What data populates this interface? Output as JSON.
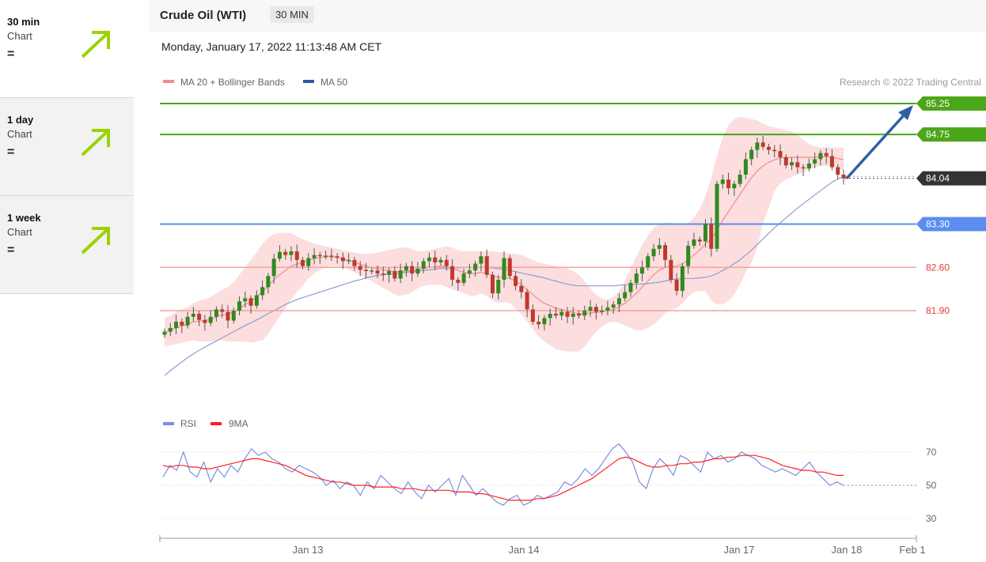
{
  "sidebar": {
    "items": [
      {
        "period": "30 min",
        "sub": "Chart",
        "signal": "=",
        "trend": "up"
      },
      {
        "period": "1 day",
        "sub": "Chart",
        "signal": "=",
        "trend": "up"
      },
      {
        "period": "1 week",
        "sub": "Chart",
        "signal": "=",
        "trend": "up"
      }
    ],
    "arrow_color": "#9ad400"
  },
  "header": {
    "title": "Crude Oil (WTI)",
    "interval": "30 MIN",
    "datetime": "Monday, January 17, 2022 11:13:48 AM CET"
  },
  "chart_data": {
    "type": "candlestick",
    "legend": [
      {
        "name": "MA 20 + Bollinger Bands",
        "color": "#f28b8b"
      },
      {
        "name": "MA 50",
        "color": "#2f5aa0"
      }
    ],
    "credit": "Research © 2022 Trading Central",
    "price_levels": [
      {
        "value": 85.25,
        "label": "85.25",
        "kind": "resistance",
        "color": "#4ca619"
      },
      {
        "value": 84.75,
        "label": "84.75",
        "kind": "resistance",
        "color": "#4ca619"
      },
      {
        "value": 84.04,
        "label": "84.04",
        "kind": "last",
        "color": "#333333"
      },
      {
        "value": 83.3,
        "label": "83.30",
        "kind": "pivot",
        "color": "#5b8def"
      },
      {
        "value": 82.6,
        "label": "82.60",
        "kind": "support",
        "color": "#f25c5c"
      },
      {
        "value": 81.9,
        "label": "81.90",
        "kind": "support",
        "color": "#f25c5c"
      }
    ],
    "up_color": "#2e8b1e",
    "down_color": "#c0392b",
    "x_ticks": [
      "Jan 13",
      "Jan 14",
      "Jan 17",
      "Jan 18",
      "Feb 1"
    ],
    "closes": [
      81.56,
      81.62,
      81.72,
      81.66,
      81.8,
      81.85,
      81.75,
      81.7,
      81.8,
      81.92,
      81.88,
      81.74,
      81.9,
      82.05,
      82.1,
      81.98,
      82.15,
      82.28,
      82.46,
      82.74,
      82.85,
      82.8,
      82.86,
      82.72,
      82.62,
      82.75,
      82.8,
      82.78,
      82.79,
      82.78,
      82.76,
      82.7,
      82.72,
      82.62,
      82.56,
      82.54,
      82.55,
      82.5,
      82.48,
      82.54,
      82.42,
      82.55,
      82.62,
      82.5,
      82.58,
      82.7,
      82.76,
      82.68,
      82.72,
      82.62,
      82.4,
      82.35,
      82.5,
      82.55,
      82.66,
      82.78,
      82.48,
      82.18,
      82.4,
      82.75,
      82.46,
      82.3,
      82.2,
      81.92,
      81.72,
      81.68,
      81.78,
      81.85,
      81.82,
      81.88,
      81.8,
      81.85,
      81.82,
      81.9,
      81.96,
      81.88,
      81.9,
      81.95,
      82.0,
      82.1,
      82.2,
      82.35,
      82.5,
      82.6,
      82.78,
      82.9,
      82.96,
      82.72,
      82.4,
      82.22,
      82.62,
      82.95,
      83.05,
      83.02,
      83.3,
      82.9,
      83.95,
      84.02,
      83.88,
      83.95,
      84.1,
      84.35,
      84.5,
      84.62,
      84.55,
      84.5,
      84.48,
      84.38,
      84.25,
      84.3,
      84.22,
      84.2,
      84.28,
      84.35,
      84.45,
      84.4,
      84.22,
      84.1,
      84.04
    ],
    "ma20": [
      81.55,
      81.58,
      81.62,
      81.65,
      81.68,
      81.72,
      81.73,
      81.74,
      81.76,
      81.8,
      81.83,
      81.84,
      81.88,
      81.94,
      82.0,
      82.05,
      82.12,
      82.2,
      82.3,
      82.4,
      82.48,
      82.55,
      82.62,
      82.65,
      82.68,
      82.72,
      82.74,
      82.76,
      82.77,
      82.77,
      82.76,
      82.74,
      82.71,
      82.68,
      82.65,
      82.62,
      82.6,
      82.58,
      82.56,
      82.55,
      82.53,
      82.53,
      82.54,
      82.55,
      82.56,
      82.58,
      82.6,
      82.61,
      82.62,
      82.61,
      82.58,
      82.55,
      82.52,
      82.5,
      82.5,
      82.52,
      82.5,
      82.46,
      82.44,
      82.44,
      82.42,
      82.38,
      82.32,
      82.24,
      82.16,
      82.08,
      82.02,
      81.98,
      81.94,
      81.92,
      81.89,
      81.87,
      81.85,
      81.85,
      81.86,
      81.87,
      81.88,
      81.9,
      81.92,
      81.96,
      82.02,
      82.1,
      82.18,
      82.28,
      82.38,
      82.48,
      82.56,
      82.6,
      82.62,
      82.62,
      82.66,
      82.72,
      82.8,
      82.88,
      82.98,
      83.05,
      83.2,
      83.36,
      83.5,
      83.64,
      83.78,
      83.92,
      84.05,
      84.16,
      84.24,
      84.3,
      84.34,
      84.37,
      84.38,
      84.38,
      84.38,
      84.38,
      84.38,
      84.38,
      84.39,
      84.39,
      84.38,
      84.36,
      84.34
    ],
    "bb_upper": [
      81.78,
      81.82,
      81.88,
      81.92,
      81.96,
      82.02,
      82.06,
      82.08,
      82.12,
      82.18,
      82.24,
      82.28,
      82.36,
      82.48,
      82.6,
      82.72,
      82.84,
      82.98,
      83.08,
      83.14,
      83.16,
      83.16,
      83.16,
      83.1,
      83.06,
      83.02,
      82.98,
      82.96,
      82.94,
      82.92,
      82.9,
      82.88,
      82.86,
      82.84,
      82.82,
      82.82,
      82.82,
      82.84,
      82.86,
      82.88,
      82.9,
      82.92,
      82.92,
      82.9,
      82.86,
      82.86,
      82.88,
      82.9,
      82.92,
      82.94,
      82.92,
      82.88,
      82.86,
      82.86,
      82.86,
      82.86,
      82.86,
      82.86,
      82.85,
      82.84,
      82.82,
      82.82,
      82.8,
      82.76,
      82.72,
      82.68,
      82.66,
      82.64,
      82.62,
      82.6,
      82.58,
      82.54,
      82.48,
      82.38,
      82.26,
      82.16,
      82.1,
      82.08,
      82.12,
      82.22,
      82.38,
      82.58,
      82.78,
      82.96,
      83.12,
      83.24,
      83.3,
      83.32,
      83.32,
      83.3,
      83.3,
      83.32,
      83.4,
      83.55,
      83.75,
      84.05,
      84.4,
      84.7,
      84.9,
      85.0,
      85.04,
      85.02,
      85.0,
      84.98,
      84.92,
      84.88,
      84.86,
      84.84,
      84.82,
      84.8,
      84.74,
      84.66,
      84.6,
      84.56,
      84.54,
      84.54,
      84.54,
      84.54,
      84.54
    ],
    "bb_lower": [
      81.32,
      81.34,
      81.36,
      81.38,
      81.4,
      81.42,
      81.4,
      81.4,
      81.4,
      81.42,
      81.42,
      81.4,
      81.4,
      81.4,
      81.4,
      81.38,
      81.4,
      81.42,
      81.52,
      81.66,
      81.8,
      81.94,
      82.08,
      82.2,
      82.3,
      82.42,
      82.5,
      82.56,
      82.6,
      82.62,
      82.62,
      82.6,
      82.56,
      82.52,
      82.48,
      82.42,
      82.38,
      82.32,
      82.26,
      82.22,
      82.16,
      82.14,
      82.16,
      82.2,
      82.26,
      82.3,
      82.32,
      82.32,
      82.32,
      82.28,
      82.24,
      82.22,
      82.18,
      82.14,
      82.14,
      82.18,
      82.14,
      82.06,
      82.02,
      82.04,
      82.02,
      81.94,
      81.84,
      81.72,
      81.6,
      81.48,
      81.4,
      81.34,
      81.28,
      81.26,
      81.24,
      81.24,
      81.24,
      81.32,
      81.44,
      81.56,
      81.64,
      81.7,
      81.72,
      81.7,
      81.66,
      81.62,
      81.58,
      81.58,
      81.62,
      81.68,
      81.76,
      81.86,
      81.92,
      81.94,
      82.02,
      82.12,
      82.2,
      82.22,
      82.22,
      82.06,
      82.0,
      82.0,
      82.06,
      82.16,
      82.32,
      82.52,
      82.68,
      82.92,
      83.32,
      83.56,
      83.84,
      83.96,
      84.02,
      84.06,
      84.1,
      84.14,
      84.18,
      84.22,
      84.24,
      84.24,
      84.24,
      84.2,
      84.16
    ],
    "ma50": [
      80.85,
      80.93,
      81.0,
      81.07,
      81.14,
      81.2,
      81.26,
      81.31,
      81.36,
      81.41,
      81.46,
      81.51,
      81.56,
      81.61,
      81.66,
      81.7,
      81.75,
      81.8,
      81.85,
      81.9,
      81.95,
      82.0,
      82.04,
      82.08,
      82.11,
      82.14,
      82.17,
      82.2,
      82.23,
      82.26,
      82.29,
      82.32,
      82.35,
      82.38,
      82.4,
      82.43,
      82.45,
      82.47,
      82.48,
      82.49,
      82.5,
      82.51,
      82.52,
      82.53,
      82.54,
      82.55,
      82.56,
      82.57,
      82.58,
      82.58,
      82.59,
      82.59,
      82.6,
      82.6,
      82.6,
      82.6,
      82.6,
      82.59,
      82.58,
      82.57,
      82.55,
      82.53,
      82.51,
      82.49,
      82.47,
      82.45,
      82.43,
      82.4,
      82.38,
      82.35,
      82.33,
      82.31,
      82.3,
      82.3,
      82.3,
      82.3,
      82.3,
      82.3,
      82.3,
      82.31,
      82.32,
      82.32,
      82.33,
      82.33,
      82.34,
      82.35,
      82.36,
      82.38,
      82.4,
      82.41,
      82.42,
      82.42,
      82.42,
      82.43,
      82.44,
      82.46,
      82.5,
      82.55,
      82.6,
      82.66,
      82.72,
      82.8,
      82.88,
      82.97,
      83.06,
      83.15,
      83.24,
      83.32,
      83.4,
      83.48,
      83.56,
      83.63,
      83.7,
      83.77,
      83.84,
      83.91,
      83.98,
      84.03,
      84.07
    ],
    "rsi": {
      "name": "RSI",
      "ma_name": "9MA",
      "rsi_color": "#7a8fe0",
      "ma_color": "#ff2020",
      "levels": [
        70,
        50,
        30
      ],
      "ylim": [
        25,
        75
      ],
      "values": [
        55,
        62,
        59,
        70,
        58,
        55,
        64,
        52,
        60,
        55,
        62,
        58,
        66,
        72,
        68,
        70,
        66,
        64,
        60,
        58,
        62,
        60,
        58,
        55,
        50,
        53,
        48,
        52,
        50,
        44,
        52,
        48,
        56,
        52,
        48,
        45,
        52,
        46,
        42,
        50,
        46,
        50,
        54,
        44,
        56,
        50,
        44,
        48,
        44,
        40,
        38,
        42,
        44,
        38,
        40,
        44,
        42,
        44,
        46,
        52,
        50,
        54,
        60,
        56,
        60,
        66,
        72,
        75,
        70,
        64,
        52,
        48,
        60,
        66,
        62,
        56,
        68,
        66,
        62,
        58,
        70,
        66,
        68,
        64,
        66,
        70,
        68,
        66,
        62,
        60,
        58,
        60,
        58,
        56,
        60,
        64,
        58,
        54,
        50,
        52,
        50
      ],
      "ma_values": [
        62,
        61,
        62,
        62,
        61,
        61,
        60,
        60,
        61,
        62,
        63,
        64,
        65,
        66,
        66,
        65,
        64,
        63,
        62,
        60,
        58,
        56,
        55,
        54,
        53,
        52,
        52,
        51,
        50,
        50,
        50,
        49,
        49,
        49,
        49,
        48,
        48,
        48,
        47,
        47,
        47,
        47,
        47,
        46,
        46,
        46,
        45,
        45,
        44,
        43,
        42,
        41,
        41,
        41,
        41,
        42,
        42,
        43,
        44,
        46,
        48,
        50,
        52,
        54,
        57,
        60,
        63,
        66,
        67,
        66,
        64,
        62,
        61,
        61,
        62,
        62,
        63,
        63,
        64,
        64,
        65,
        66,
        66,
        67,
        67,
        68,
        68,
        68,
        67,
        66,
        64,
        62,
        61,
        60,
        59,
        59,
        58,
        58,
        57,
        56,
        56
      ]
    }
  }
}
